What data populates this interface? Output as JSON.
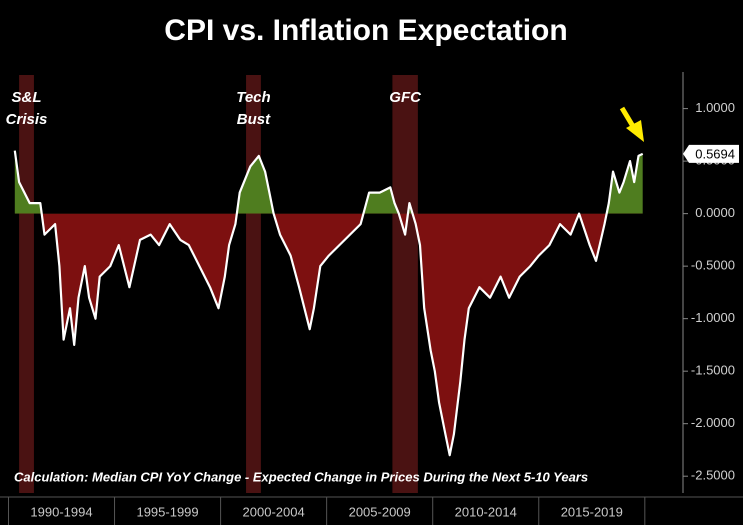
{
  "chart_data": {
    "type": "line",
    "title": "CPI vs. Inflation Expectation",
    "note": "Calculation: Median CPI YoY Change - Expected Change in Prices During the Next 5-10 Years",
    "x": [
      1990.3,
      1990.5,
      1991.0,
      1991.5,
      1991.7,
      1992.2,
      1992.4,
      1992.6,
      1992.9,
      1993.1,
      1993.3,
      1993.6,
      1993.8,
      1994.1,
      1994.3,
      1994.8,
      1995.2,
      1995.7,
      1996.2,
      1996.7,
      1997.1,
      1997.6,
      1998.1,
      1998.5,
      1999.0,
      1999.5,
      1999.9,
      2000.2,
      2000.4,
      2000.7,
      2000.9,
      2001.4,
      2001.8,
      2002.1,
      2002.3,
      2002.5,
      2002.8,
      2003.3,
      2003.7,
      2004.2,
      2004.4,
      2004.7,
      2005.1,
      2005.6,
      2006.1,
      2006.6,
      2007.0,
      2007.5,
      2008.0,
      2008.2,
      2008.4,
      2008.7,
      2008.9,
      2009.2,
      2009.4,
      2009.6,
      2009.9,
      2010.1,
      2010.3,
      2010.6,
      2010.8,
      2011.0,
      2011.3,
      2011.5,
      2011.7,
      2012.2,
      2012.7,
      2013.2,
      2013.6,
      2014.1,
      2014.6,
      2015.0,
      2015.5,
      2016.0,
      2016.5,
      2016.9,
      2017.4,
      2017.7,
      2018.1,
      2018.3,
      2018.5,
      2018.8,
      2019.0,
      2019.3,
      2019.5,
      2019.7,
      2019.9
    ],
    "values": [
      0.6,
      0.3,
      0.1,
      0.1,
      -0.2,
      -0.1,
      -0.5,
      -1.2,
      -0.9,
      -1.25,
      -0.8,
      -0.5,
      -0.8,
      -1.0,
      -0.6,
      -0.5,
      -0.3,
      -0.7,
      -0.25,
      -0.2,
      -0.3,
      -0.1,
      -0.25,
      -0.3,
      -0.5,
      -0.7,
      -0.9,
      -0.6,
      -0.3,
      -0.1,
      0.2,
      0.45,
      0.55,
      0.4,
      0.2,
      0.0,
      -0.2,
      -0.4,
      -0.7,
      -1.1,
      -0.9,
      -0.5,
      -0.4,
      -0.3,
      -0.2,
      -0.1,
      0.2,
      0.2,
      0.25,
      0.1,
      0.0,
      -0.2,
      0.1,
      -0.1,
      -0.3,
      -0.9,
      -1.3,
      -1.5,
      -1.8,
      -2.1,
      -2.3,
      -2.1,
      -1.6,
      -1.2,
      -0.9,
      -0.7,
      -0.8,
      -0.6,
      -0.8,
      -0.6,
      -0.5,
      -0.4,
      -0.3,
      -0.1,
      -0.2,
      0.0,
      -0.3,
      -0.45,
      -0.1,
      0.1,
      0.4,
      0.2,
      0.3,
      0.5,
      0.3,
      0.55,
      0.5694
    ],
    "color": "#ffffff",
    "positive_color": "#4f7d1f",
    "negative_color": "#7d1010",
    "recession_color": "#4a1212",
    "recessions": [
      {
        "label": [
          "S&L",
          "Crisis"
        ],
        "start": 1990.5,
        "end": 1991.2
      },
      {
        "label": [
          "Tech",
          "Bust"
        ],
        "start": 2001.2,
        "end": 2001.9
      },
      {
        "label": [
          "GFC"
        ],
        "start": 2008.1,
        "end": 2009.3
      }
    ],
    "categories": [
      "1990-1994",
      "1995-1999",
      "2000-2004",
      "2005-2009",
      "2010-2014",
      "2015-2019"
    ],
    "xticks": [
      1990,
      1995,
      2000,
      2005,
      2010,
      2015,
      2020
    ],
    "xlim": [
      1989.6,
      2021.8
    ],
    "ylim": [
      -2.66,
      1.32
    ],
    "yticks": [
      {
        "value": 1,
        "label": "1.0000"
      },
      {
        "value": 0.5,
        "label": "0.5000"
      },
      {
        "value": 0,
        "label": "0.0000"
      },
      {
        "value": -0.5,
        "label": "-0.5000"
      },
      {
        "value": -1,
        "label": "-1.0000"
      },
      {
        "value": -1.5,
        "label": "-1.5000"
      },
      {
        "value": -2,
        "label": "-2.0000"
      },
      {
        "value": -2.5,
        "label": "-2.5000"
      }
    ]
  }
}
